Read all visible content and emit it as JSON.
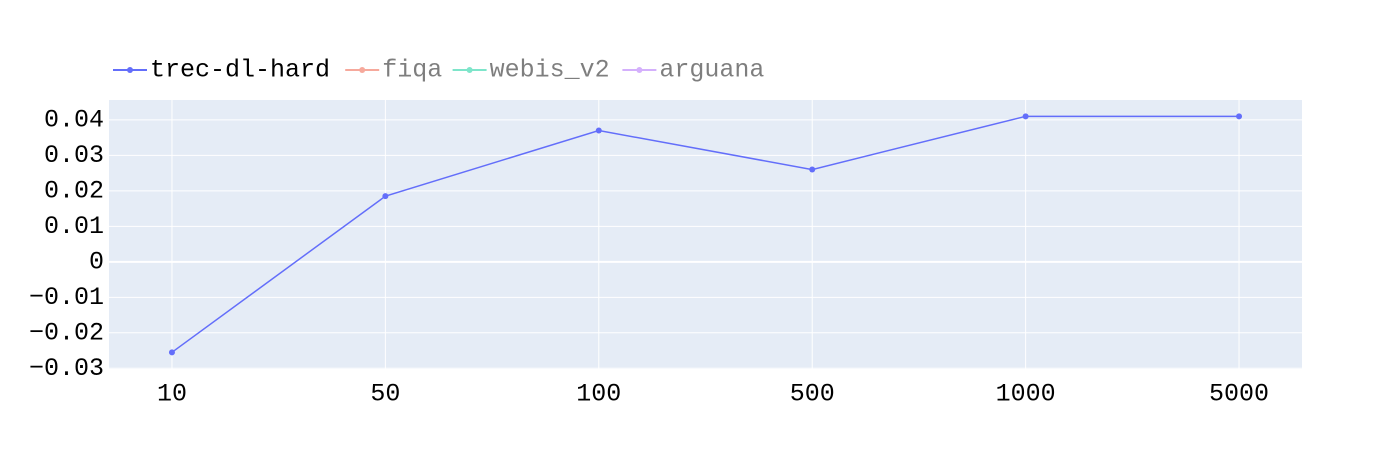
{
  "chart_data": {
    "type": "line",
    "categories": [
      "10",
      "50",
      "100",
      "500",
      "1000",
      "5000"
    ],
    "series": [
      {
        "name": "trec-dl-hard",
        "color": "#636efa",
        "values": [
          -0.0255,
          0.0185,
          0.037,
          0.026,
          0.041,
          0.041
        ]
      },
      {
        "name": "fiqa",
        "color": "#ef553b",
        "values": [
          null,
          null,
          null,
          null,
          null,
          null
        ],
        "hidden": true
      },
      {
        "name": "webis_v2",
        "color": "#00cc96",
        "values": [
          null,
          null,
          null,
          null,
          null,
          null
        ],
        "hidden": true
      },
      {
        "name": "arguana",
        "color": "#ab63fa",
        "values": [
          null,
          null,
          null,
          null,
          null,
          null
        ],
        "hidden": true
      }
    ],
    "ylim": [
      -0.0302,
      0.0456
    ],
    "yticks": [
      {
        "value": -0.03,
        "label": "−0.03"
      },
      {
        "value": -0.02,
        "label": "−0.02"
      },
      {
        "value": -0.01,
        "label": "−0.01"
      },
      0,
      0.01,
      0.02,
      0.03,
      0.04
    ],
    "grid": true,
    "legend": "top-left"
  }
}
